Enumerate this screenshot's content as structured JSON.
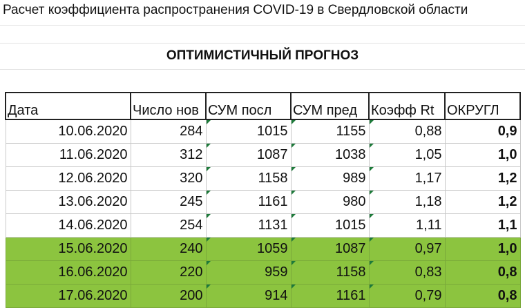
{
  "title": "Расчет коэффициента распространения COVID-19 в Свердловской области",
  "subtitle": "ОПТИМИСТИЧНЫЙ ПРОГНОЗ",
  "table": {
    "header": [
      "Дата",
      "Число нов",
      "СУМ посл",
      "СУМ пред",
      "Коэфф Rt",
      "ОКРУГЛ"
    ],
    "rows": [
      [
        "10.06.2020",
        "284",
        "1015",
        "1155",
        "0,88",
        "0,9"
      ],
      [
        "11.06.2020",
        "312",
        "1087",
        "1038",
        "1,05",
        "1,0"
      ],
      [
        "12.06.2020",
        "320",
        "1158",
        "989",
        "1,17",
        "1,2"
      ],
      [
        "13.06.2020",
        "245",
        "1161",
        "980",
        "1,18",
        "1,2"
      ],
      [
        "14.06.2020",
        "254",
        "1131",
        "1015",
        "1,11",
        "1,1"
      ],
      [
        "15.06.2020",
        "240",
        "1059",
        "1087",
        "0,97",
        "1,0"
      ],
      [
        "16.06.2020",
        "220",
        "959",
        "1158",
        "0,83",
        "0,8"
      ],
      [
        "17.06.2020",
        "200",
        "914",
        "1161",
        "0,79",
        "0,8"
      ]
    ]
  }
}
